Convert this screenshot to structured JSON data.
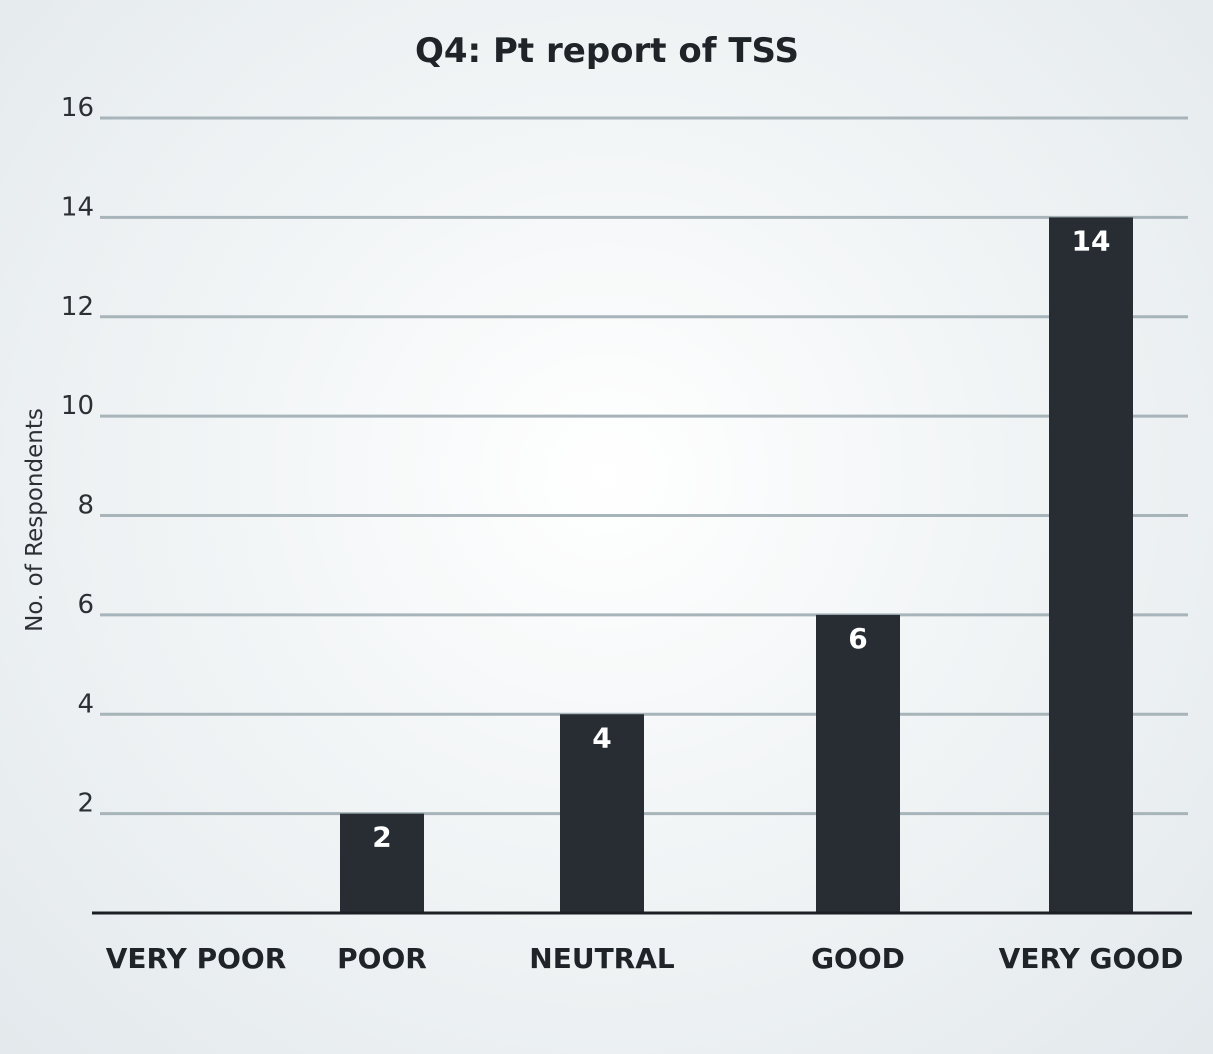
{
  "chart_data": {
    "type": "bar",
    "title": "Q4: Pt report of TSS",
    "xlabel": "",
    "ylabel": "No. of Respondents",
    "categories": [
      "VERY POOR",
      "POOR",
      "NEUTRAL",
      "GOOD",
      "VERY GOOD"
    ],
    "values": [
      0,
      2,
      4,
      6,
      14
    ],
    "data_labels": [
      "",
      "2",
      "4",
      "6",
      "14"
    ],
    "yticks": [
      2,
      4,
      6,
      8,
      10,
      12,
      14,
      16
    ],
    "ytick_labels": [
      "2",
      "4",
      "6",
      "8",
      "10",
      "12",
      "14",
      "16"
    ],
    "ylim": [
      0,
      16
    ],
    "grid": true,
    "legend": "none",
    "colors": {
      "bar": "#272d33",
      "grid": "#a7b4ba",
      "axis": "#1c2024",
      "data_label": "#ffffff"
    }
  }
}
